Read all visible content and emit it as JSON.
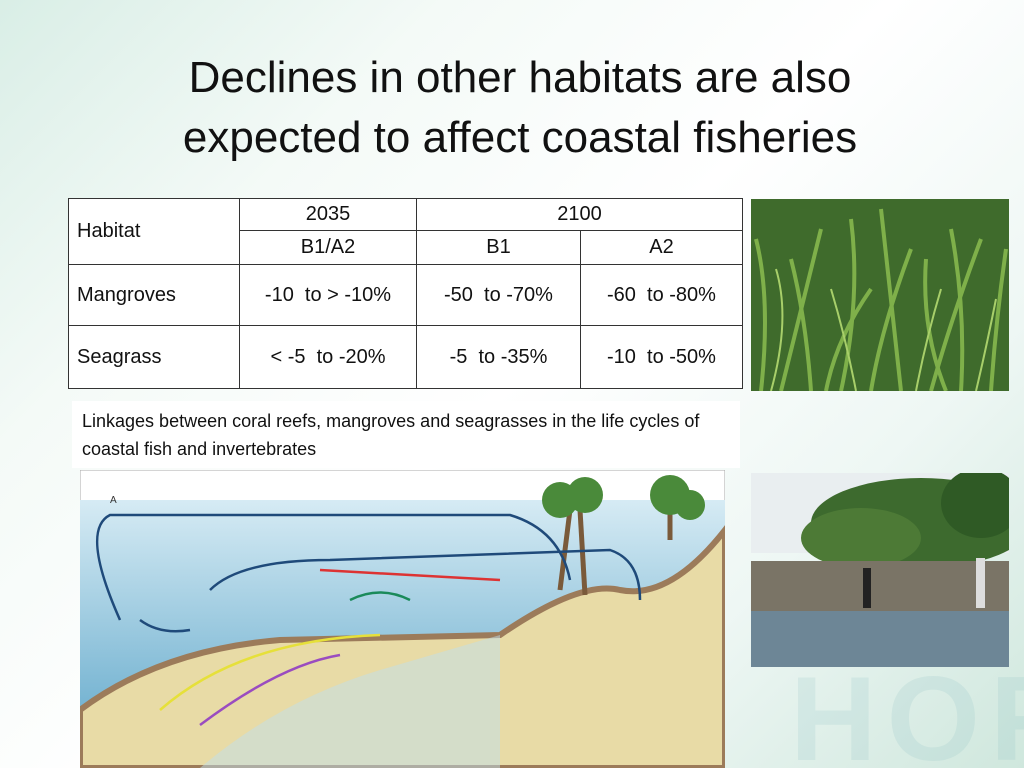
{
  "title": [
    "Declines in other habitats are also",
    "expected to affect coastal fisheries"
  ],
  "table": {
    "header": {
      "habitat": "Habitat",
      "year_a": "2035",
      "year_b": "2100",
      "scenarios": [
        "B1/A2",
        "B1",
        "A2"
      ]
    },
    "rows": [
      [
        "Mangroves",
        "-10  to > -10%",
        "-50  to -70%",
        "-60  to -80%"
      ],
      [
        "Seagrass",
        "< -5  to -20%",
        "-5  to -35%",
        "-10  to -50%"
      ]
    ]
  },
  "caption": "Linkages between coral reefs, mangroves and seagrasses in the life cycles of coastal fish and invertebrates",
  "diagram_label": "A",
  "watermark": "HOF"
}
